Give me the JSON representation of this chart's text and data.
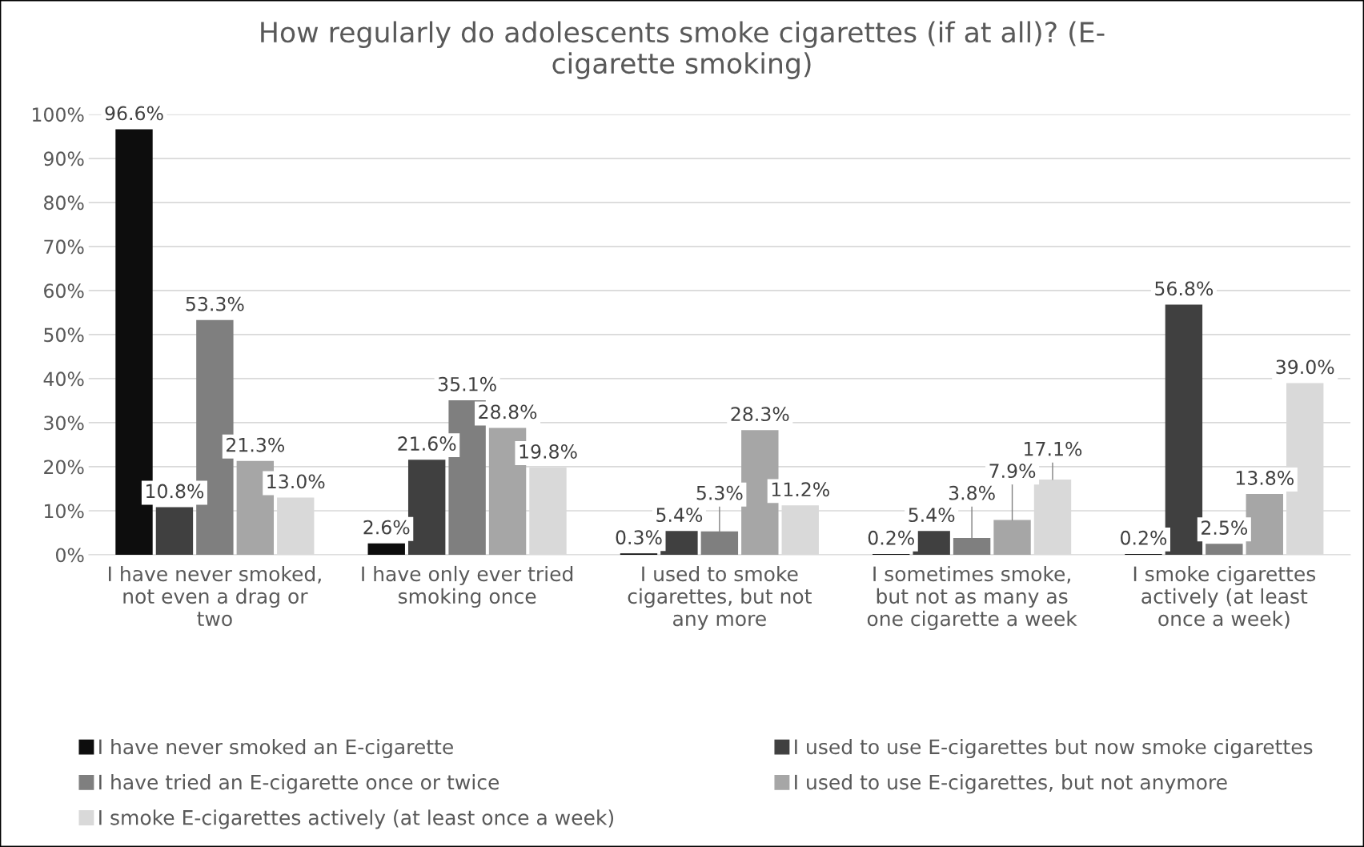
{
  "chart_data": {
    "type": "bar",
    "title": "How regularly do adolescents smoke cigarettes (if at all)? (E-\ncigarette smoking)",
    "categories": [
      "I have never smoked,\nnot even a drag or\ntwo",
      "I have only ever tried\nsmoking once",
      "I used to smoke\ncigarettes, but not\nany more",
      "I sometimes smoke,\nbut not as many as\none cigarette a week",
      "I smoke cigarettes\nactively (at least\nonce a week)"
    ],
    "series": [
      {
        "name": "I have never smoked an E-cigarette",
        "color": "#0d0d0d",
        "values": [
          96.6,
          2.6,
          0.3,
          0.2,
          0.2
        ],
        "value_labels": [
          "96.6%",
          "2.6%",
          "0.3%",
          "0.2%",
          "0.2%"
        ]
      },
      {
        "name": "I used to use E-cigarettes but now smoke cigarettes",
        "color": "#404040",
        "values": [
          10.8,
          21.6,
          5.4,
          5.4,
          56.8
        ],
        "value_labels": [
          "10.8%",
          "21.6%",
          "5.4%",
          "5.4%",
          "56.8%"
        ]
      },
      {
        "name": "I have tried an E-cigarette once or twice",
        "color": "#7f7f7f",
        "values": [
          53.3,
          35.1,
          5.3,
          3.8,
          2.5
        ],
        "value_labels": [
          "53.3%",
          "35.1%",
          "5.3%",
          "3.8%",
          "2.5%"
        ]
      },
      {
        "name": "I used to use E-cigarettes, but not anymore",
        "color": "#a6a6a6",
        "values": [
          21.3,
          28.8,
          28.3,
          7.9,
          13.8
        ],
        "value_labels": [
          "21.3%",
          "28.8%",
          "28.3%",
          "7.9%",
          "13.8%"
        ]
      },
      {
        "name": "I smoke E-cigarettes actively (at least once a week)",
        "color": "#d9d9d9",
        "values": [
          13.0,
          19.8,
          11.2,
          17.1,
          39.0
        ],
        "value_labels": [
          "13.0%",
          "19.8%",
          "11.2%",
          "17.1%",
          "39.0%"
        ]
      }
    ],
    "ylim": [
      0,
      100
    ],
    "yticks": [
      {
        "value": 0,
        "label": "0%"
      },
      {
        "value": 10,
        "label": "10%"
      },
      {
        "value": 20,
        "label": "20%"
      },
      {
        "value": 30,
        "label": "30%"
      },
      {
        "value": 40,
        "label": "40%"
      },
      {
        "value": 50,
        "label": "50%"
      },
      {
        "value": 60,
        "label": "60%"
      },
      {
        "value": 70,
        "label": "70%"
      },
      {
        "value": 80,
        "label": "80%"
      },
      {
        "value": 90,
        "label": "90%"
      },
      {
        "value": 100,
        "label": "100%"
      }
    ],
    "grid": "y",
    "legend": "bottom"
  }
}
